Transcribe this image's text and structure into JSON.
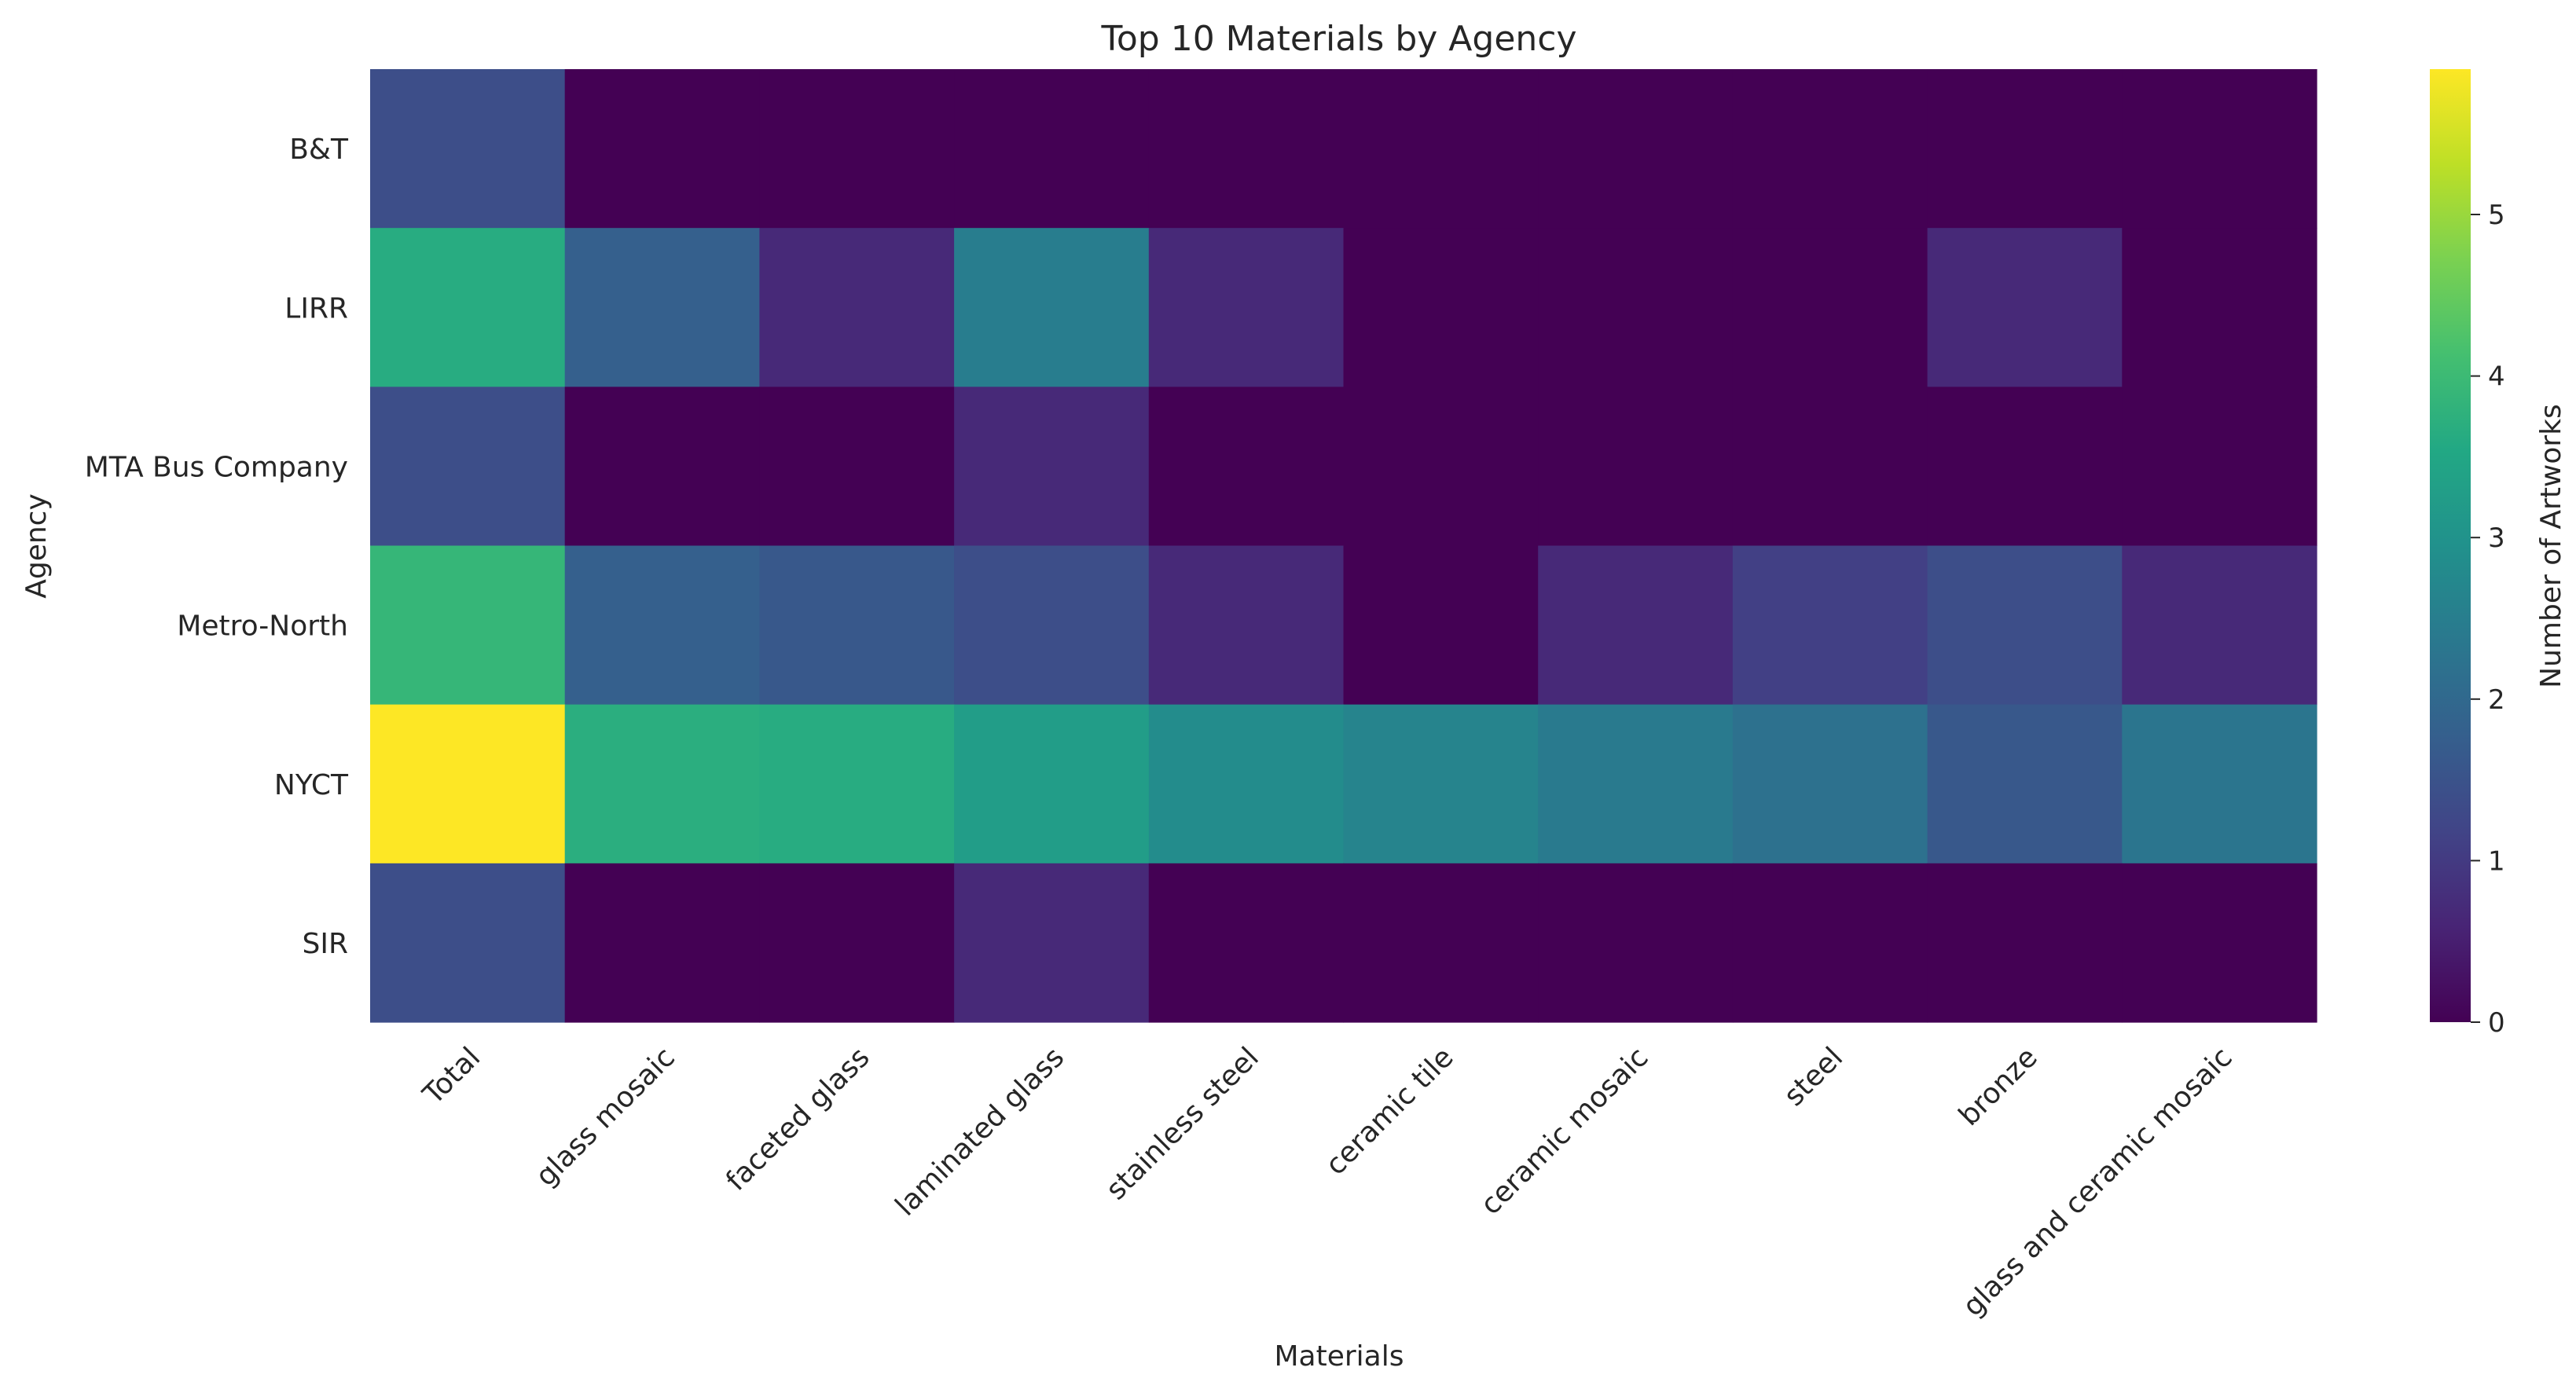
{
  "chart_data": {
    "type": "heatmap",
    "title": "Top 10 Materials by Agency",
    "xlabel": "Materials",
    "ylabel": "Agency",
    "colorbar_label": "Number of Artworks",
    "colormap": "viridis",
    "value_range": [
      0,
      5.9
    ],
    "colorbar_ticks": [
      0,
      1,
      2,
      3,
      4,
      5
    ],
    "rows": [
      "B&T",
      "LIRR",
      "MTA Bus Company",
      "Metro-North",
      "NYCT",
      "SIR"
    ],
    "columns": [
      "Total",
      "glass mosaic",
      "faceted glass",
      "laminated glass",
      "stainless steel",
      "ceramic tile",
      "ceramic mosaic",
      "steel",
      "bronze",
      "glass and ceramic mosaic"
    ],
    "values": [
      [
        1.39,
        0,
        0,
        0,
        0,
        0,
        0,
        0,
        0,
        0
      ],
      [
        3.64,
        1.79,
        0.69,
        2.48,
        0.69,
        0,
        0,
        0,
        0.69,
        0
      ],
      [
        1.39,
        0,
        0,
        0.69,
        0,
        0,
        0,
        0,
        0,
        0
      ],
      [
        3.89,
        1.79,
        1.61,
        1.39,
        0.69,
        0,
        0.69,
        1.1,
        1.39,
        0.69
      ],
      [
        5.92,
        3.69,
        3.64,
        3.26,
        2.83,
        2.64,
        2.4,
        2.2,
        1.61,
        2.3
      ],
      [
        1.39,
        0,
        0,
        0.69,
        0,
        0,
        0,
        0,
        0,
        0
      ]
    ],
    "grid": false,
    "legend": "colorbar-right"
  }
}
